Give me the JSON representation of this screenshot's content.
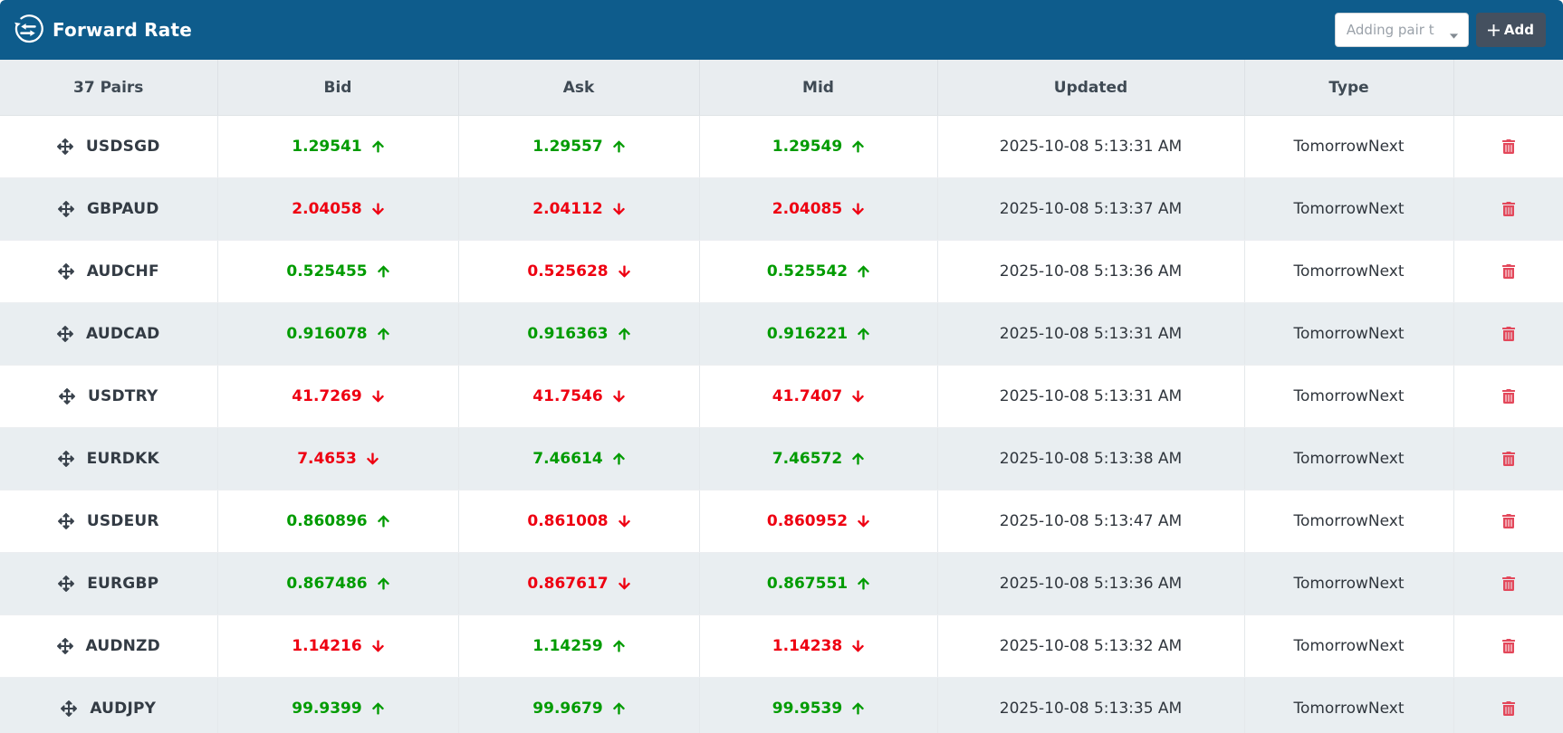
{
  "header": {
    "title": "Forward Rate",
    "app_icon": "exchange-rate-icon",
    "dropdown_placeholder": "Adding pair t",
    "add_button_label": "Add"
  },
  "colors": {
    "topbar_blue": "#0e5c8c",
    "positive_green": "#009b00",
    "negative_red": "#ee0011",
    "delete_red": "#e3485b",
    "add_button_bg": "#44505f",
    "striped_row_bg": "#e9eef1",
    "header_row_bg": "#e9edf0"
  },
  "table": {
    "columns": [
      "37 Pairs",
      "Bid",
      "Ask",
      "Mid",
      "Updated",
      "Type",
      ""
    ],
    "rows": [
      {
        "pair": "USDSGD",
        "bid": "1.29541",
        "bid_dir": "up",
        "ask": "1.29557",
        "ask_dir": "up",
        "mid": "1.29549",
        "mid_dir": "up",
        "updated": "2025-10-08 5:13:31 AM",
        "type": "TomorrowNext"
      },
      {
        "pair": "GBPAUD",
        "bid": "2.04058",
        "bid_dir": "down",
        "ask": "2.04112",
        "ask_dir": "down",
        "mid": "2.04085",
        "mid_dir": "down",
        "updated": "2025-10-08 5:13:37 AM",
        "type": "TomorrowNext"
      },
      {
        "pair": "AUDCHF",
        "bid": "0.525455",
        "bid_dir": "up",
        "ask": "0.525628",
        "ask_dir": "down",
        "mid": "0.525542",
        "mid_dir": "up",
        "updated": "2025-10-08 5:13:36 AM",
        "type": "TomorrowNext"
      },
      {
        "pair": "AUDCAD",
        "bid": "0.916078",
        "bid_dir": "up",
        "ask": "0.916363",
        "ask_dir": "up",
        "mid": "0.916221",
        "mid_dir": "up",
        "updated": "2025-10-08 5:13:31 AM",
        "type": "TomorrowNext"
      },
      {
        "pair": "USDTRY",
        "bid": "41.7269",
        "bid_dir": "down",
        "ask": "41.7546",
        "ask_dir": "down",
        "mid": "41.7407",
        "mid_dir": "down",
        "updated": "2025-10-08 5:13:31 AM",
        "type": "TomorrowNext"
      },
      {
        "pair": "EURDKK",
        "bid": "7.4653",
        "bid_dir": "down",
        "ask": "7.46614",
        "ask_dir": "up",
        "mid": "7.46572",
        "mid_dir": "up",
        "updated": "2025-10-08 5:13:38 AM",
        "type": "TomorrowNext"
      },
      {
        "pair": "USDEUR",
        "bid": "0.860896",
        "bid_dir": "up",
        "ask": "0.861008",
        "ask_dir": "down",
        "mid": "0.860952",
        "mid_dir": "down",
        "updated": "2025-10-08 5:13:47 AM",
        "type": "TomorrowNext"
      },
      {
        "pair": "EURGBP",
        "bid": "0.867486",
        "bid_dir": "up",
        "ask": "0.867617",
        "ask_dir": "down",
        "mid": "0.867551",
        "mid_dir": "up",
        "updated": "2025-10-08 5:13:36 AM",
        "type": "TomorrowNext"
      },
      {
        "pair": "AUDNZD",
        "bid": "1.14216",
        "bid_dir": "down",
        "ask": "1.14259",
        "ask_dir": "up",
        "mid": "1.14238",
        "mid_dir": "down",
        "updated": "2025-10-08 5:13:32 AM",
        "type": "TomorrowNext"
      },
      {
        "pair": "AUDJPY",
        "bid": "99.9399",
        "bid_dir": "up",
        "ask": "99.9679",
        "ask_dir": "up",
        "mid": "99.9539",
        "mid_dir": "up",
        "updated": "2025-10-08 5:13:35 AM",
        "type": "TomorrowNext"
      }
    ]
  }
}
